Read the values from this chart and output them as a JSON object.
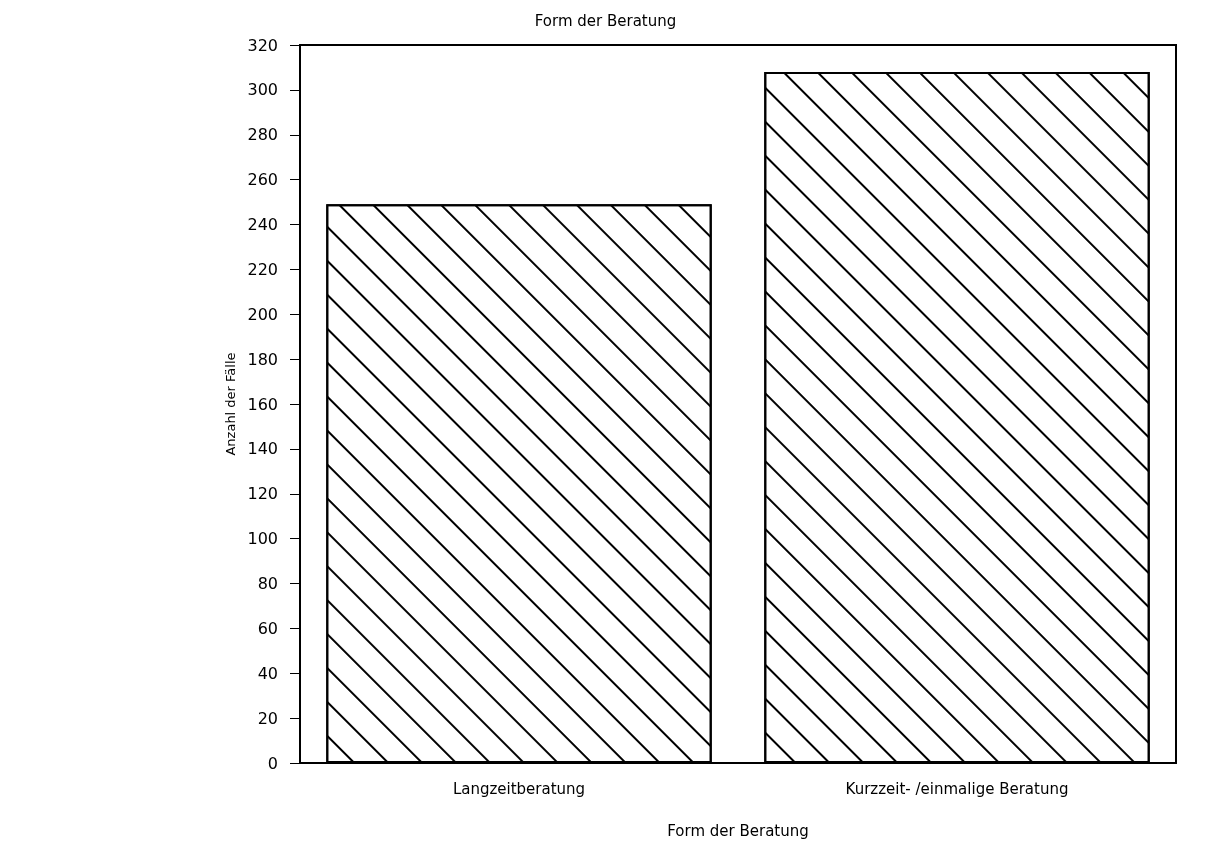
{
  "chart_data": {
    "type": "bar",
    "title": "Form der Beratung",
    "xlabel": "Form der Beratung",
    "ylabel": "Anzahl der Fälle",
    "categories": [
      "Langzeitberatung",
      "Kurzzeit- /einmalige Beratung"
    ],
    "values": [
      249,
      308
    ],
    "color": "#ffffff",
    "ylim": [
      0,
      320
    ],
    "yticks": [
      0,
      20,
      40,
      60,
      80,
      100,
      120,
      140,
      160,
      180,
      200,
      220,
      240,
      260,
      280,
      300,
      320
    ],
    "grid": false
  }
}
